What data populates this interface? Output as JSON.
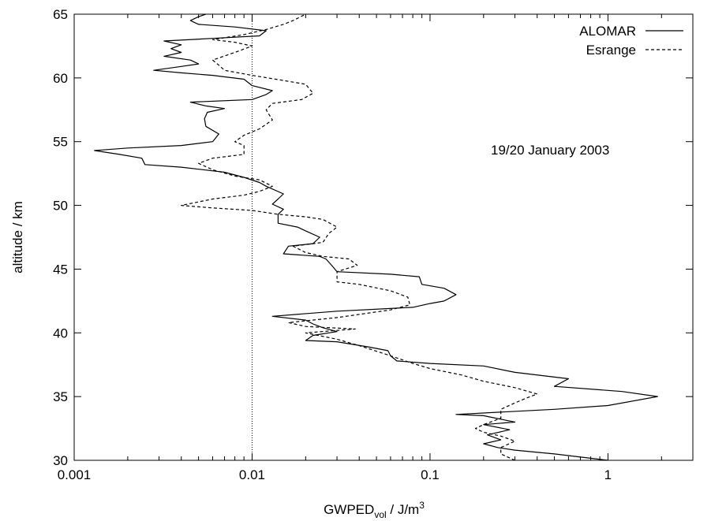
{
  "chart_data": {
    "type": "line",
    "xscale": "log",
    "x_label_text": "GWPED",
    "x_label_sub": "vol",
    "x_label_unit": " / J/m",
    "x_label_sup": "3",
    "ylabel": "altitude / km",
    "xlim": [
      0.001,
      3
    ],
    "ylim": [
      30,
      65
    ],
    "x_ticks": [
      {
        "value": 0.001,
        "label": "0.001"
      },
      {
        "value": 0.01,
        "label": "0.01"
      },
      {
        "value": 0.1,
        "label": "0.1"
      },
      {
        "value": 1,
        "label": "1"
      }
    ],
    "y_ticks": [
      {
        "value": 30,
        "label": "30"
      },
      {
        "value": 35,
        "label": "35"
      },
      {
        "value": 40,
        "label": "40"
      },
      {
        "value": 45,
        "label": "45"
      },
      {
        "value": 50,
        "label": "50"
      },
      {
        "value": 55,
        "label": "55"
      },
      {
        "value": 60,
        "label": "60"
      },
      {
        "value": 65,
        "label": "65"
      }
    ],
    "reference_line_x": 0.01,
    "annotation": "19/20 January 2003",
    "legend_position": "top-right",
    "series": [
      {
        "name": "ALOMAR",
        "style": "solid",
        "points": [
          [
            1.0,
            30
          ],
          [
            0.5,
            30.5
          ],
          [
            0.3,
            30.8
          ],
          [
            0.24,
            31.0
          ],
          [
            0.2,
            31.3
          ],
          [
            0.25,
            31.6
          ],
          [
            0.21,
            32.0
          ],
          [
            0.28,
            32.4
          ],
          [
            0.2,
            32.8
          ],
          [
            0.3,
            33.0
          ],
          [
            0.2,
            33.5
          ],
          [
            0.14,
            33.6
          ],
          [
            0.5,
            34.0
          ],
          [
            1.0,
            34.3
          ],
          [
            1.9,
            35.0
          ],
          [
            1.2,
            35.4
          ],
          [
            0.5,
            35.8
          ],
          [
            0.6,
            36.4
          ],
          [
            0.3,
            36.9
          ],
          [
            0.2,
            37.4
          ],
          [
            0.1,
            37.6
          ],
          [
            0.065,
            37.8
          ],
          [
            0.06,
            38.2
          ],
          [
            0.058,
            38.6
          ],
          [
            0.045,
            38.9
          ],
          [
            0.03,
            39.3
          ],
          [
            0.02,
            39.4
          ],
          [
            0.022,
            39.8
          ],
          [
            0.03,
            40.1
          ],
          [
            0.025,
            40.4
          ],
          [
            0.022,
            40.7
          ],
          [
            0.02,
            41.0
          ],
          [
            0.013,
            41.3
          ],
          [
            0.03,
            41.7
          ],
          [
            0.08,
            42.0
          ],
          [
            0.1,
            42.3
          ],
          [
            0.12,
            42.5
          ],
          [
            0.14,
            43.0
          ],
          [
            0.12,
            43.5
          ],
          [
            0.09,
            43.8
          ],
          [
            0.087,
            44.4
          ],
          [
            0.06,
            44.6
          ],
          [
            0.03,
            44.8
          ],
          [
            0.028,
            45.3
          ],
          [
            0.026,
            45.8
          ],
          [
            0.024,
            46.0
          ],
          [
            0.015,
            46.2
          ],
          [
            0.016,
            46.8
          ],
          [
            0.022,
            47.0
          ],
          [
            0.024,
            47.5
          ],
          [
            0.02,
            48.0
          ],
          [
            0.018,
            48.3
          ],
          [
            0.014,
            48.6
          ],
          [
            0.014,
            49.3
          ],
          [
            0.015,
            49.7
          ],
          [
            0.013,
            50.1
          ],
          [
            0.014,
            50.5
          ],
          [
            0.015,
            50.9
          ],
          [
            0.012,
            51.5
          ],
          [
            0.011,
            51.8
          ],
          [
            0.009,
            52.2
          ],
          [
            0.007,
            52.6
          ],
          [
            0.004,
            53.0
          ],
          [
            0.0025,
            53.2
          ],
          [
            0.0024,
            53.7
          ],
          [
            0.0018,
            54.0
          ],
          [
            0.0013,
            54.3
          ],
          [
            0.002,
            54.5
          ],
          [
            0.004,
            54.7
          ],
          [
            0.006,
            55.0
          ],
          [
            0.0065,
            55.6
          ],
          [
            0.0055,
            56.2
          ],
          [
            0.0054,
            56.8
          ],
          [
            0.0056,
            57.3
          ],
          [
            0.007,
            57.6
          ],
          [
            0.0055,
            57.8
          ],
          [
            0.0045,
            58.1
          ],
          [
            0.01,
            58.3
          ],
          [
            0.012,
            58.7
          ],
          [
            0.013,
            59.0
          ],
          [
            0.01,
            59.4
          ],
          [
            0.009,
            59.9
          ],
          [
            0.006,
            60.2
          ],
          [
            0.004,
            60.4
          ],
          [
            0.0028,
            60.6
          ],
          [
            0.004,
            60.9
          ],
          [
            0.005,
            61.1
          ],
          [
            0.0045,
            61.4
          ],
          [
            0.0032,
            61.7
          ],
          [
            0.004,
            62.0
          ],
          [
            0.0035,
            62.3
          ],
          [
            0.004,
            62.6
          ],
          [
            0.0032,
            62.9
          ],
          [
            0.006,
            63.1
          ],
          [
            0.011,
            63.3
          ],
          [
            0.012,
            63.7
          ],
          [
            0.008,
            64.0
          ],
          [
            0.005,
            64.2
          ],
          [
            0.0045,
            64.5
          ],
          [
            0.005,
            64.8
          ],
          [
            0.0055,
            65.0
          ]
        ]
      },
      {
        "name": "Esrange",
        "style": "dashed",
        "points": [
          [
            0.3,
            30
          ],
          [
            0.25,
            30.5
          ],
          [
            0.25,
            31.0
          ],
          [
            0.3,
            31.5
          ],
          [
            0.25,
            31.9
          ],
          [
            0.2,
            32.2
          ],
          [
            0.18,
            32.5
          ],
          [
            0.2,
            32.8
          ],
          [
            0.25,
            33.3
          ],
          [
            0.25,
            34.0
          ],
          [
            0.3,
            34.5
          ],
          [
            0.35,
            34.9
          ],
          [
            0.4,
            35.2
          ],
          [
            0.3,
            35.7
          ],
          [
            0.2,
            36.2
          ],
          [
            0.15,
            36.7
          ],
          [
            0.1,
            37.2
          ],
          [
            0.08,
            37.6
          ],
          [
            0.06,
            38.2
          ],
          [
            0.04,
            39.0
          ],
          [
            0.03,
            39.5
          ],
          [
            0.02,
            40.0
          ],
          [
            0.038,
            40.3
          ],
          [
            0.02,
            40.5
          ],
          [
            0.016,
            40.8
          ],
          [
            0.03,
            41.2
          ],
          [
            0.06,
            41.8
          ],
          [
            0.077,
            42.2
          ],
          [
            0.075,
            42.8
          ],
          [
            0.06,
            43.3
          ],
          [
            0.04,
            43.8
          ],
          [
            0.03,
            44.0
          ],
          [
            0.03,
            44.8
          ],
          [
            0.039,
            45.3
          ],
          [
            0.035,
            45.8
          ],
          [
            0.025,
            46.0
          ],
          [
            0.02,
            46.3
          ],
          [
            0.017,
            46.8
          ],
          [
            0.025,
            47.1
          ],
          [
            0.027,
            47.8
          ],
          [
            0.03,
            48.3
          ],
          [
            0.025,
            48.9
          ],
          [
            0.02,
            49.1
          ],
          [
            0.014,
            49.3
          ],
          [
            0.01,
            49.6
          ],
          [
            0.006,
            49.8
          ],
          [
            0.004,
            50.0
          ],
          [
            0.006,
            50.5
          ],
          [
            0.009,
            50.8
          ],
          [
            0.011,
            51.1
          ],
          [
            0.013,
            51.5
          ],
          [
            0.011,
            52.0
          ],
          [
            0.008,
            52.3
          ],
          [
            0.006,
            52.8
          ],
          [
            0.005,
            53.3
          ],
          [
            0.006,
            53.7
          ],
          [
            0.009,
            54.0
          ],
          [
            0.009,
            54.7
          ],
          [
            0.008,
            55.0
          ],
          [
            0.009,
            55.5
          ],
          [
            0.011,
            56.0
          ],
          [
            0.013,
            56.7
          ],
          [
            0.012,
            57.5
          ],
          [
            0.013,
            58.0
          ],
          [
            0.019,
            58.3
          ],
          [
            0.022,
            58.8
          ],
          [
            0.02,
            59.5
          ],
          [
            0.015,
            59.8
          ],
          [
            0.01,
            60.2
          ],
          [
            0.007,
            60.6
          ],
          [
            0.0065,
            61.0
          ],
          [
            0.006,
            61.4
          ],
          [
            0.008,
            62.0
          ],
          [
            0.01,
            62.5
          ],
          [
            0.008,
            62.8
          ],
          [
            0.006,
            63.0
          ],
          [
            0.009,
            63.4
          ],
          [
            0.012,
            63.8
          ],
          [
            0.015,
            64.2
          ],
          [
            0.017,
            64.5
          ],
          [
            0.02,
            65.0
          ]
        ]
      }
    ]
  }
}
